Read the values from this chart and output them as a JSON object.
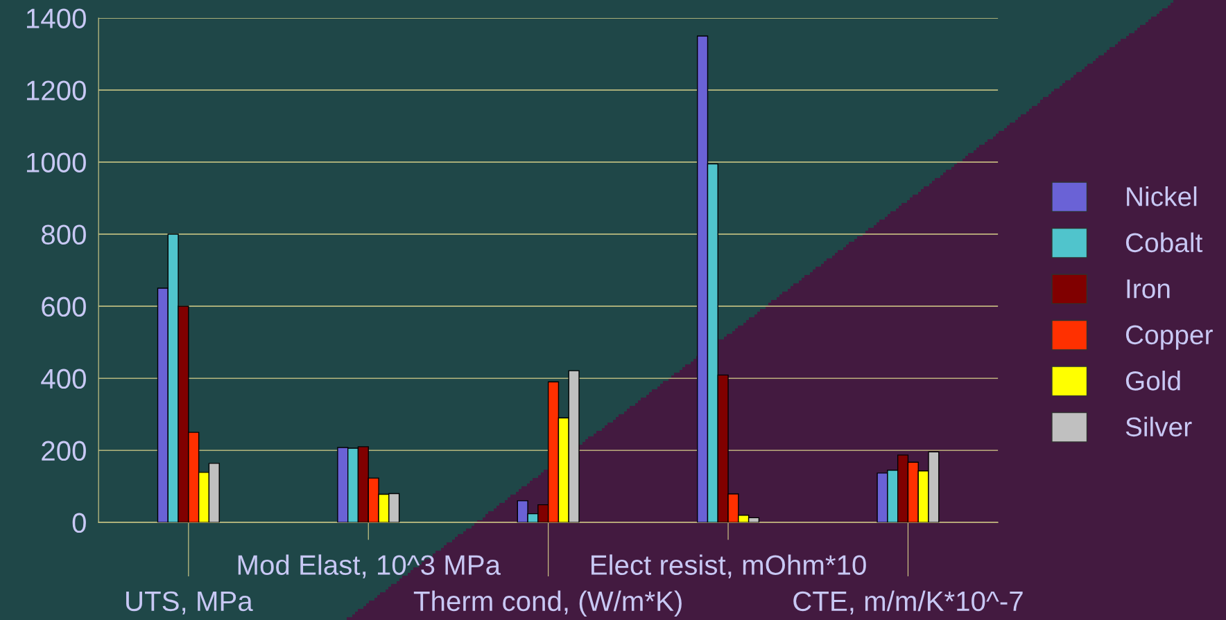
{
  "chart_data": {
    "type": "bar",
    "categories": [
      "UTS, MPa",
      "Mod Elast, 10^3 MPa",
      "Therm cond, (W/m*K)",
      "Elect resist, mOhm*10",
      "CTE, m/m/K*10^-7"
    ],
    "series": [
      {
        "name": "Nickel",
        "color": "#6a62d6",
        "values": [
          650,
          208,
          60,
          1350,
          137
        ]
      },
      {
        "name": "Cobalt",
        "color": "#50c4cc",
        "values": [
          800,
          206,
          24,
          995,
          145
        ]
      },
      {
        "name": "Iron",
        "color": "#800000",
        "values": [
          600,
          210,
          49,
          409,
          187
        ]
      },
      {
        "name": "Copper",
        "color": "#ff3000",
        "values": [
          250,
          123,
          390,
          79,
          167
        ]
      },
      {
        "name": "Gold",
        "color": "#ffff00",
        "values": [
          139,
          78,
          290,
          20,
          143
        ]
      },
      {
        "name": "Silver",
        "color": "#c0c0c0",
        "values": [
          164,
          80,
          421,
          13,
          196
        ]
      }
    ],
    "ylim": [
      0,
      1400
    ],
    "yticks": [
      0,
      200,
      400,
      600,
      800,
      1000,
      1200,
      1400
    ],
    "grid": "y",
    "legend": "right"
  }
}
